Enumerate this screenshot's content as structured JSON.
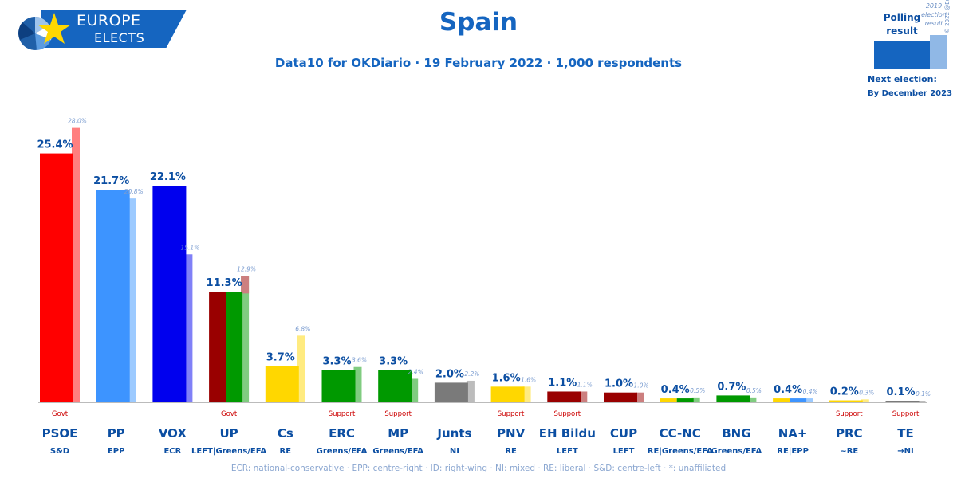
{
  "logo": {
    "line1": "EUROPE",
    "line2": "ELECTS"
  },
  "header": {
    "title": "Spain",
    "subtitle": "Data10 for OKDiario · 19 February 2022 · 1,000 respondents"
  },
  "legend": {
    "polling_label": "Polling result",
    "election_label": "2019 election result",
    "copyright": "© 2022 @EuropeElects",
    "next_election_label": "Next election:",
    "next_election_value": "By December 2023"
  },
  "footer": {
    "text": "ECR: national-conservative · EPP: centre-right · ID: right-wing · NI: mixed · RE: liberal · S&D: centre-left · *: unaffiliated"
  },
  "chart_data": {
    "type": "bar",
    "title": "Spain",
    "ylim": [
      0,
      30
    ],
    "grid": false,
    "parties": [
      {
        "name": "PSOE",
        "group": "S&D",
        "poll": 25.4,
        "election": 28.0,
        "poll_label": "25.4%",
        "election_label": "28.0%",
        "status": "Govt",
        "colors": [
          "#ff0000"
        ],
        "election_color": "#ff7f7f"
      },
      {
        "name": "PP",
        "group": "EPP",
        "poll": 21.7,
        "election": 20.8,
        "poll_label": "21.7%",
        "election_label": "20.8%",
        "status": "",
        "colors": [
          "#3d94ff"
        ],
        "election_color": "#9ccaff"
      },
      {
        "name": "VOX",
        "group": "ECR",
        "poll": 22.1,
        "election": 15.1,
        "poll_label": "22.1%",
        "election_label": "15.1%",
        "status": "",
        "colors": [
          "#0000ee"
        ],
        "election_color": "#8080f7"
      },
      {
        "name": "UP",
        "group": "LEFT|Greens/EFA",
        "poll": 11.3,
        "election": 12.9,
        "poll_label": "11.3%",
        "election_label": "12.9%",
        "status": "Govt",
        "colors": [
          "#990000",
          "#009900"
        ],
        "election_color": "#80cc80",
        "election_top_color": "#cc7f7f"
      },
      {
        "name": "Cs",
        "group": "RE",
        "poll": 3.7,
        "election": 6.8,
        "poll_label": "3.7%",
        "election_label": "6.8%",
        "status": "",
        "colors": [
          "#ffd700"
        ],
        "election_color": "#ffeb80"
      },
      {
        "name": "ERC",
        "group": "Greens/EFA",
        "poll": 3.3,
        "election": 3.6,
        "poll_label": "3.3%",
        "election_label": "3.6%",
        "status": "Support",
        "colors": [
          "#009900"
        ],
        "election_color": "#80cc80"
      },
      {
        "name": "MP",
        "group": "Greens/EFA",
        "poll": 3.3,
        "election": 2.4,
        "poll_label": "3.3%",
        "election_label": "2.4%",
        "status": "Support",
        "colors": [
          "#009900"
        ],
        "election_color": "#80cc80"
      },
      {
        "name": "Junts",
        "group": "NI",
        "poll": 2.0,
        "election": 2.2,
        "poll_label": "2.0%",
        "election_label": "2.2%",
        "status": "",
        "colors": [
          "#7a7a7a"
        ],
        "election_color": "#bcbcbc"
      },
      {
        "name": "PNV",
        "group": "RE",
        "poll": 1.6,
        "election": 1.6,
        "poll_label": "1.6%",
        "election_label": "1.6%",
        "status": "Support",
        "colors": [
          "#ffd700"
        ],
        "election_color": "#ffeb80"
      },
      {
        "name": "EH Bildu",
        "group": "LEFT",
        "poll": 1.1,
        "election": 1.1,
        "poll_label": "1.1%",
        "election_label": "1.1%",
        "status": "Support",
        "colors": [
          "#990000"
        ],
        "election_color": "#cc7f7f"
      },
      {
        "name": "CUP",
        "group": "LEFT",
        "poll": 1.0,
        "election": 1.0,
        "poll_label": "1.0%",
        "election_label": "1.0%",
        "status": "",
        "colors": [
          "#990000"
        ],
        "election_color": "#cc7f7f"
      },
      {
        "name": "CC-NC",
        "group": "RE|Greens/EFA",
        "poll": 0.4,
        "election": 0.5,
        "poll_label": "0.4%",
        "election_label": "0.5%",
        "status": "",
        "colors": [
          "#ffd700",
          "#009900"
        ],
        "election_color": "#80cc80"
      },
      {
        "name": "BNG",
        "group": "Greens/EFA",
        "poll": 0.7,
        "election": 0.5,
        "poll_label": "0.7%",
        "election_label": "0.5%",
        "status": "",
        "colors": [
          "#009900"
        ],
        "election_color": "#80cc80"
      },
      {
        "name": "NA+",
        "group": "RE|EPP",
        "poll": 0.4,
        "election": 0.4,
        "poll_label": "0.4%",
        "election_label": "0.4%",
        "status": "",
        "colors": [
          "#ffd700",
          "#3d94ff"
        ],
        "election_color": "#9ccaff"
      },
      {
        "name": "PRC",
        "group": "~RE",
        "poll": 0.2,
        "election": 0.3,
        "poll_label": "0.2%",
        "election_label": "0.3%",
        "status": "Support",
        "colors": [
          "#ffd700"
        ],
        "election_color": "#ffeb80"
      },
      {
        "name": "TE",
        "group": "→NI",
        "poll": 0.1,
        "election": 0.1,
        "poll_label": "0.1%",
        "election_label": "0.1%",
        "status": "Support",
        "colors": [
          "#7a7a7a"
        ],
        "election_color": "#bcbcbc"
      }
    ]
  }
}
